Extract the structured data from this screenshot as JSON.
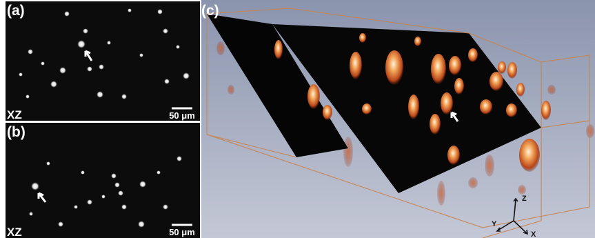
{
  "panels": [
    {
      "label": "(a)",
      "plane": "XZ",
      "scale_bar": "50 μm"
    },
    {
      "label": "(b)",
      "plane": "XZ",
      "scale_bar": "50 μm"
    },
    {
      "label": "(c)",
      "axes": {
        "z": "Z",
        "y": "Y",
        "x": "X"
      }
    }
  ]
}
